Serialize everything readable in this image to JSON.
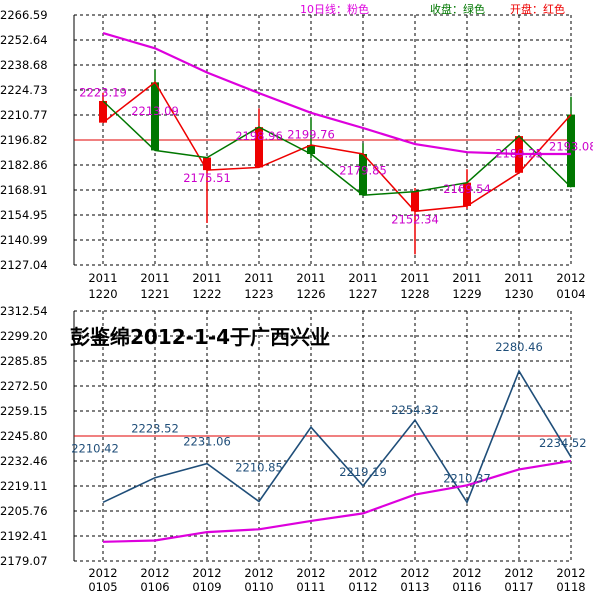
{
  "chart_data": [
    {
      "type": "candlestick",
      "legend": [
        {
          "label": "10日线：粉色",
          "color": "#dd00dd"
        },
        {
          "label": "收盘：绿色",
          "color": "#007700"
        },
        {
          "label": "开盘：红色",
          "color": "#ee0000"
        }
      ],
      "y_ticks": [
        "2266.59",
        "2252.64",
        "2238.68",
        "2224.73",
        "2210.77",
        "2196.82",
        "2182.86",
        "2168.91",
        "2154.95",
        "2140.99",
        "2127.04"
      ],
      "ylim": [
        2127.04,
        2266.59
      ],
      "reference_line": 2196.82,
      "categories": [
        {
          "year": "2011",
          "md": "1220"
        },
        {
          "year": "2011",
          "md": "1221"
        },
        {
          "year": "2011",
          "md": "1222"
        },
        {
          "year": "2011",
          "md": "1223"
        },
        {
          "year": "2011",
          "md": "1226"
        },
        {
          "year": "2011",
          "md": "1227"
        },
        {
          "year": "2011",
          "md": "1228"
        },
        {
          "year": "2011",
          "md": "1229"
        },
        {
          "year": "2011",
          "md": "1230"
        },
        {
          "year": "2012",
          "md": "0104"
        }
      ],
      "candles": [
        {
          "open": 2206.5,
          "close": 2218.6,
          "high": 2223.19,
          "low": 2206.5,
          "color": "red"
        },
        {
          "open": 2229.0,
          "close": 2191.0,
          "high": 2236.0,
          "low": 2191.0,
          "color": "green"
        },
        {
          "open": 2180.0,
          "close": 2187.0,
          "high": 2187.0,
          "low": 2150.5,
          "color": "red"
        },
        {
          "open": 2181.5,
          "close": 2204.0,
          "high": 2214.5,
          "low": 2181.5,
          "color": "red"
        },
        {
          "open": 2194.0,
          "close": 2189.0,
          "high": 2209.0,
          "low": 2186.5,
          "color": "green"
        },
        {
          "open": 2189.0,
          "close": 2166.0,
          "high": 2195.0,
          "low": 2166.0,
          "color": "green"
        },
        {
          "open": 2157.0,
          "close": 2168.0,
          "high": 2170.0,
          "low": 2133.0,
          "color": "red"
        },
        {
          "open": 2160.0,
          "close": 2173.0,
          "high": 2180.5,
          "low": 2158.5,
          "color": "red"
        },
        {
          "open": 2178.5,
          "close": 2199.0,
          "high": 2199.0,
          "low": 2178.5,
          "color": "red"
        },
        {
          "open": 2211.0,
          "close": 2170.5,
          "high": 2221.0,
          "low": 2170.5,
          "color": "green"
        }
      ],
      "ma10": [
        2256.5,
        2248.0,
        2234.5,
        2223.0,
        2212.0,
        2203.5,
        2194.5,
        2190.0,
        2189.0,
        2189.0
      ],
      "labels": [
        {
          "text": "2223.19",
          "i": 0,
          "value": 2223.19
        },
        {
          "text": "2213.09",
          "i": 1,
          "value": 2213.09
        },
        {
          "text": "2175.51",
          "i": 2,
          "value": 2175.51
        },
        {
          "text": "2198.96",
          "i": 3,
          "value": 2198.96
        },
        {
          "text": "2199.76",
          "i": 4,
          "value": 2199.76
        },
        {
          "text": "2179.85",
          "i": 5,
          "value": 2179.85
        },
        {
          "text": "2152.34",
          "i": 6,
          "value": 2152.34
        },
        {
          "text": "2169.54",
          "i": 7,
          "value": 2169.54
        },
        {
          "text": "2189.25",
          "i": 8,
          "value": 2189.25
        },
        {
          "text": "2193.08",
          "i": 9,
          "value": 2193.08
        }
      ]
    },
    {
      "type": "line",
      "watermark": "彭鉴绵2012-1-4于广西兴业",
      "y_ticks": [
        "2312.54",
        "2299.20",
        "2285.85",
        "2272.50",
        "2259.15",
        "2245.80",
        "2232.46",
        "2219.11",
        "2205.76",
        "2192.41",
        "2179.07"
      ],
      "ylim": [
        2179.07,
        2312.54
      ],
      "reference_line": 2245.8,
      "categories": [
        {
          "year": "2012",
          "md": "0105"
        },
        {
          "year": "2012",
          "md": "0106"
        },
        {
          "year": "2012",
          "md": "0109"
        },
        {
          "year": "2012",
          "md": "0110"
        },
        {
          "year": "2012",
          "md": "0111"
        },
        {
          "year": "2012",
          "md": "0112"
        },
        {
          "year": "2012",
          "md": "0113"
        },
        {
          "year": "2012",
          "md": "0116"
        },
        {
          "year": "2012",
          "md": "0117"
        },
        {
          "year": "2012",
          "md": "0118"
        }
      ],
      "series": [
        {
          "values": [
            2210.42,
            2223.52,
            2231.06,
            2210.85,
            2250.5,
            2219.19,
            2254.32,
            2210.37,
            2280.46,
            2234.52
          ],
          "color": "#1f4e79"
        },
        {
          "values": [
            2189.3,
            2190.0,
            2194.5,
            2196.0,
            2200.5,
            2204.5,
            2214.5,
            2219.5,
            2228.0,
            2232.5
          ],
          "color": "#dd00dd"
        }
      ],
      "labels": [
        {
          "text": "2210.42",
          "i": 0
        },
        {
          "text": "2223.52",
          "i": 1
        },
        {
          "text": "2231.06",
          "i": 2
        },
        {
          "text": "2210.85",
          "i": 3
        },
        {
          "text": "2219.19",
          "i": 5
        },
        {
          "text": "2254.32",
          "i": 6
        },
        {
          "text": "2210.37",
          "i": 7
        },
        {
          "text": "2280.46",
          "i": 8
        },
        {
          "text": "2234.52",
          "i": 9
        }
      ]
    }
  ]
}
